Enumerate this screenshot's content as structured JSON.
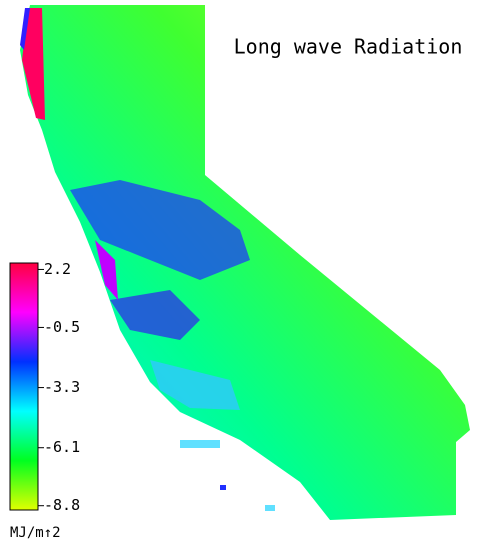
{
  "title": "Long wave Radiation",
  "colorbar": {
    "lim": [
      -9.0,
      2.5
    ],
    "ticks": [
      2.2,
      -0.5,
      -3.3,
      -6.1,
      -8.8
    ],
    "unit": "MJ/m↑2",
    "colors": [
      "#e0ff00",
      "#00ff20",
      "#00ffff",
      "#0030ff",
      "#ff00ff",
      "#ff0040"
    ]
  }
}
